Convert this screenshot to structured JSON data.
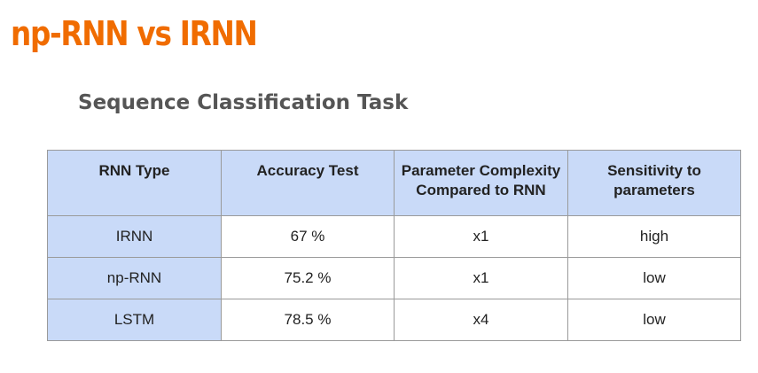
{
  "slide": {
    "title": "np-RNN vs IRNN",
    "subtitle": "Sequence Classification Task"
  },
  "table": {
    "headers": [
      "RNN Type",
      "Accuracy Test",
      "Parameter Complexity Compared to RNN",
      "Sensitivity to parameters"
    ],
    "rows": [
      [
        "IRNN",
        "67 %",
        "x1",
        "high"
      ],
      [
        "np-RNN",
        "75.2 %",
        "x1",
        "low"
      ],
      [
        "LSTM",
        "78.5 %",
        "x4",
        "low"
      ]
    ]
  },
  "colors": {
    "title": "#f06c00",
    "header_fill": "#c9daf8",
    "border": "#9a9a9a"
  }
}
